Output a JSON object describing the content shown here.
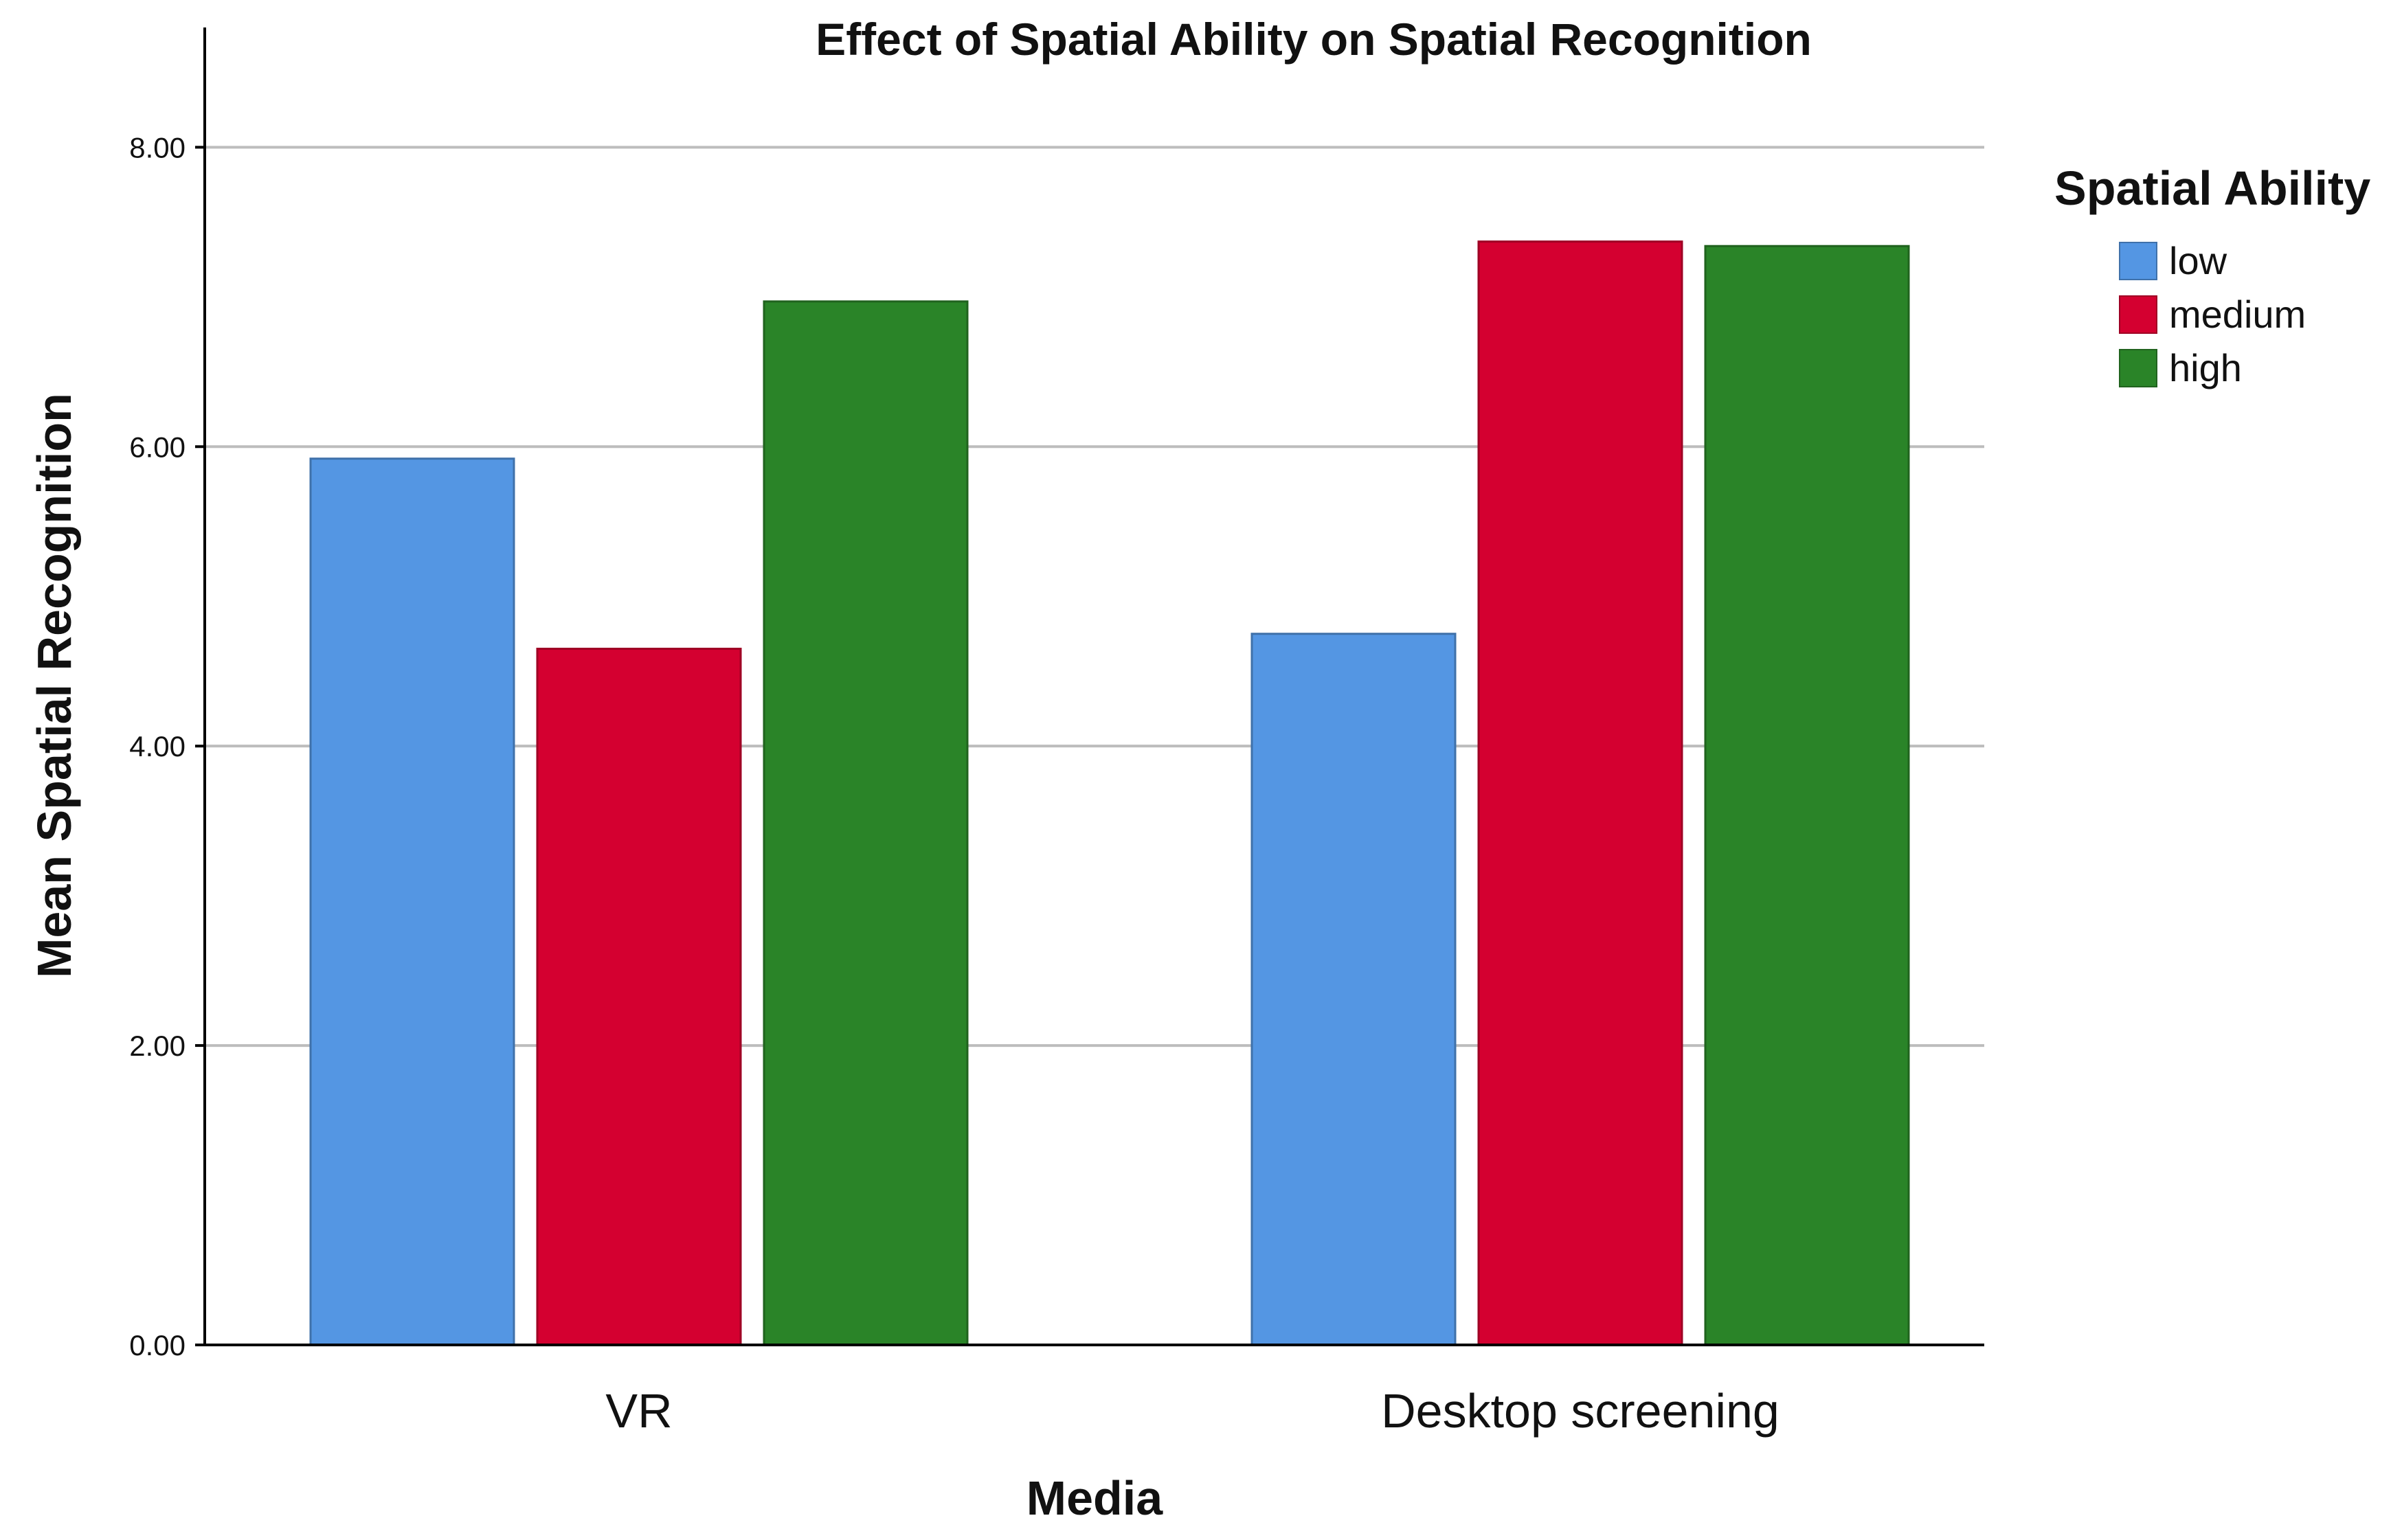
{
  "chart_data": {
    "type": "bar",
    "title": "Effect of Spatial Ability on Spatial Recognition",
    "xlabel": "Media",
    "ylabel": "Mean Spatial Recognition",
    "categories": [
      "VR",
      "Desktop screening"
    ],
    "series": [
      {
        "name": "low",
        "color": "#5496e3",
        "values": [
          5.92,
          4.75
        ]
      },
      {
        "name": "medium",
        "color": "#d40030",
        "values": [
          4.65,
          7.37
        ]
      },
      {
        "name": "high",
        "color": "#2a8428",
        "values": [
          6.97,
          7.34
        ]
      }
    ],
    "ylim": [
      0,
      8.8
    ],
    "yticks": [
      0,
      2,
      4,
      6,
      8
    ],
    "ytick_labels": [
      "0.00",
      "2.00",
      "4.00",
      "6.00",
      "8.00"
    ],
    "grid": true,
    "legend": {
      "title": "Spatial Ability",
      "position": "right"
    }
  }
}
